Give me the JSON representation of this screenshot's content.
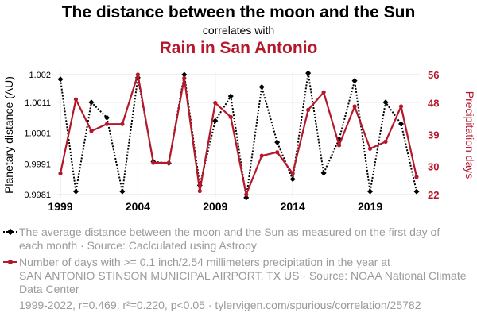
{
  "header": {
    "title": "The distance between the moon and the Sun",
    "connector": "correlates with",
    "title2": "Rain in San Antonio"
  },
  "colors": {
    "series1": "#000000",
    "series2": "#b5182b",
    "legend_text": "#9a9a9a"
  },
  "chart_data": {
    "type": "line",
    "x": [
      1999,
      2000,
      2001,
      2002,
      2003,
      2004,
      2005,
      2006,
      2007,
      2008,
      2009,
      2010,
      2011,
      2012,
      2013,
      2014,
      2015,
      2016,
      2017,
      2018,
      2019,
      2020,
      2021,
      2022
    ],
    "x_ticks": [
      "1999",
      "2004",
      "2009",
      "2014",
      "2019"
    ],
    "xlim": [
      1999,
      2022
    ],
    "series": [
      {
        "name": "The distance between the moon and the Sun",
        "axis": "left",
        "style": "dotted",
        "values": [
          1.00185,
          0.9982,
          1.0011,
          1.0006,
          0.9982,
          1.0019,
          0.99917,
          0.99912,
          1.002,
          0.9984,
          1.0005,
          1.0013,
          0.998,
          1.0016,
          0.9998,
          0.9986,
          1.00205,
          0.9988,
          0.9999,
          1.0018,
          0.9982,
          1.0011,
          1.0004,
          0.9982
        ]
      },
      {
        "name": "Rain in San Antonio",
        "axis": "right",
        "style": "solid",
        "values": [
          28,
          49,
          40,
          42,
          42,
          56,
          31,
          31,
          55,
          23,
          48,
          44,
          22,
          33,
          34,
          28,
          46,
          51,
          36,
          47,
          35,
          37,
          47,
          27
        ]
      }
    ],
    "y_left": {
      "label": "Planetary distance (AU)",
      "ticks": [
        "1.002",
        "1.0011",
        "1.0001",
        "0.9991",
        "0.9981"
      ],
      "tick_values": [
        1.002,
        1.0011,
        1.0001,
        0.9991,
        0.9981
      ],
      "ylim": [
        0.9981,
        1.002
      ]
    },
    "y_right": {
      "label": "Precipitation days",
      "ticks": [
        "56",
        "48",
        "39",
        "30",
        "22"
      ],
      "tick_values": [
        56,
        48,
        39,
        30,
        22
      ],
      "ylim": [
        22,
        56
      ]
    },
    "grid": true
  },
  "legend": {
    "entry1_line1": "The average distance between the moon and the Sun as measured on the first day of",
    "entry1_line2": "each month · Source: Caclculated using Astropy",
    "entry2_line1": "Number of days with >= 0.1 inch/2.54 millimeters precipitation in the year at",
    "entry2_line2": "SAN ANTONIO STINSON MUNICIPAL AIRPORT, TX US · Source: NOAA National Climate",
    "entry2_line3": "Data Center"
  },
  "footer": {
    "stats": "1999-2022, r=0.469, r²=0.220, p<0.05 · tylervigen.com/spurious/correlation/25782"
  }
}
